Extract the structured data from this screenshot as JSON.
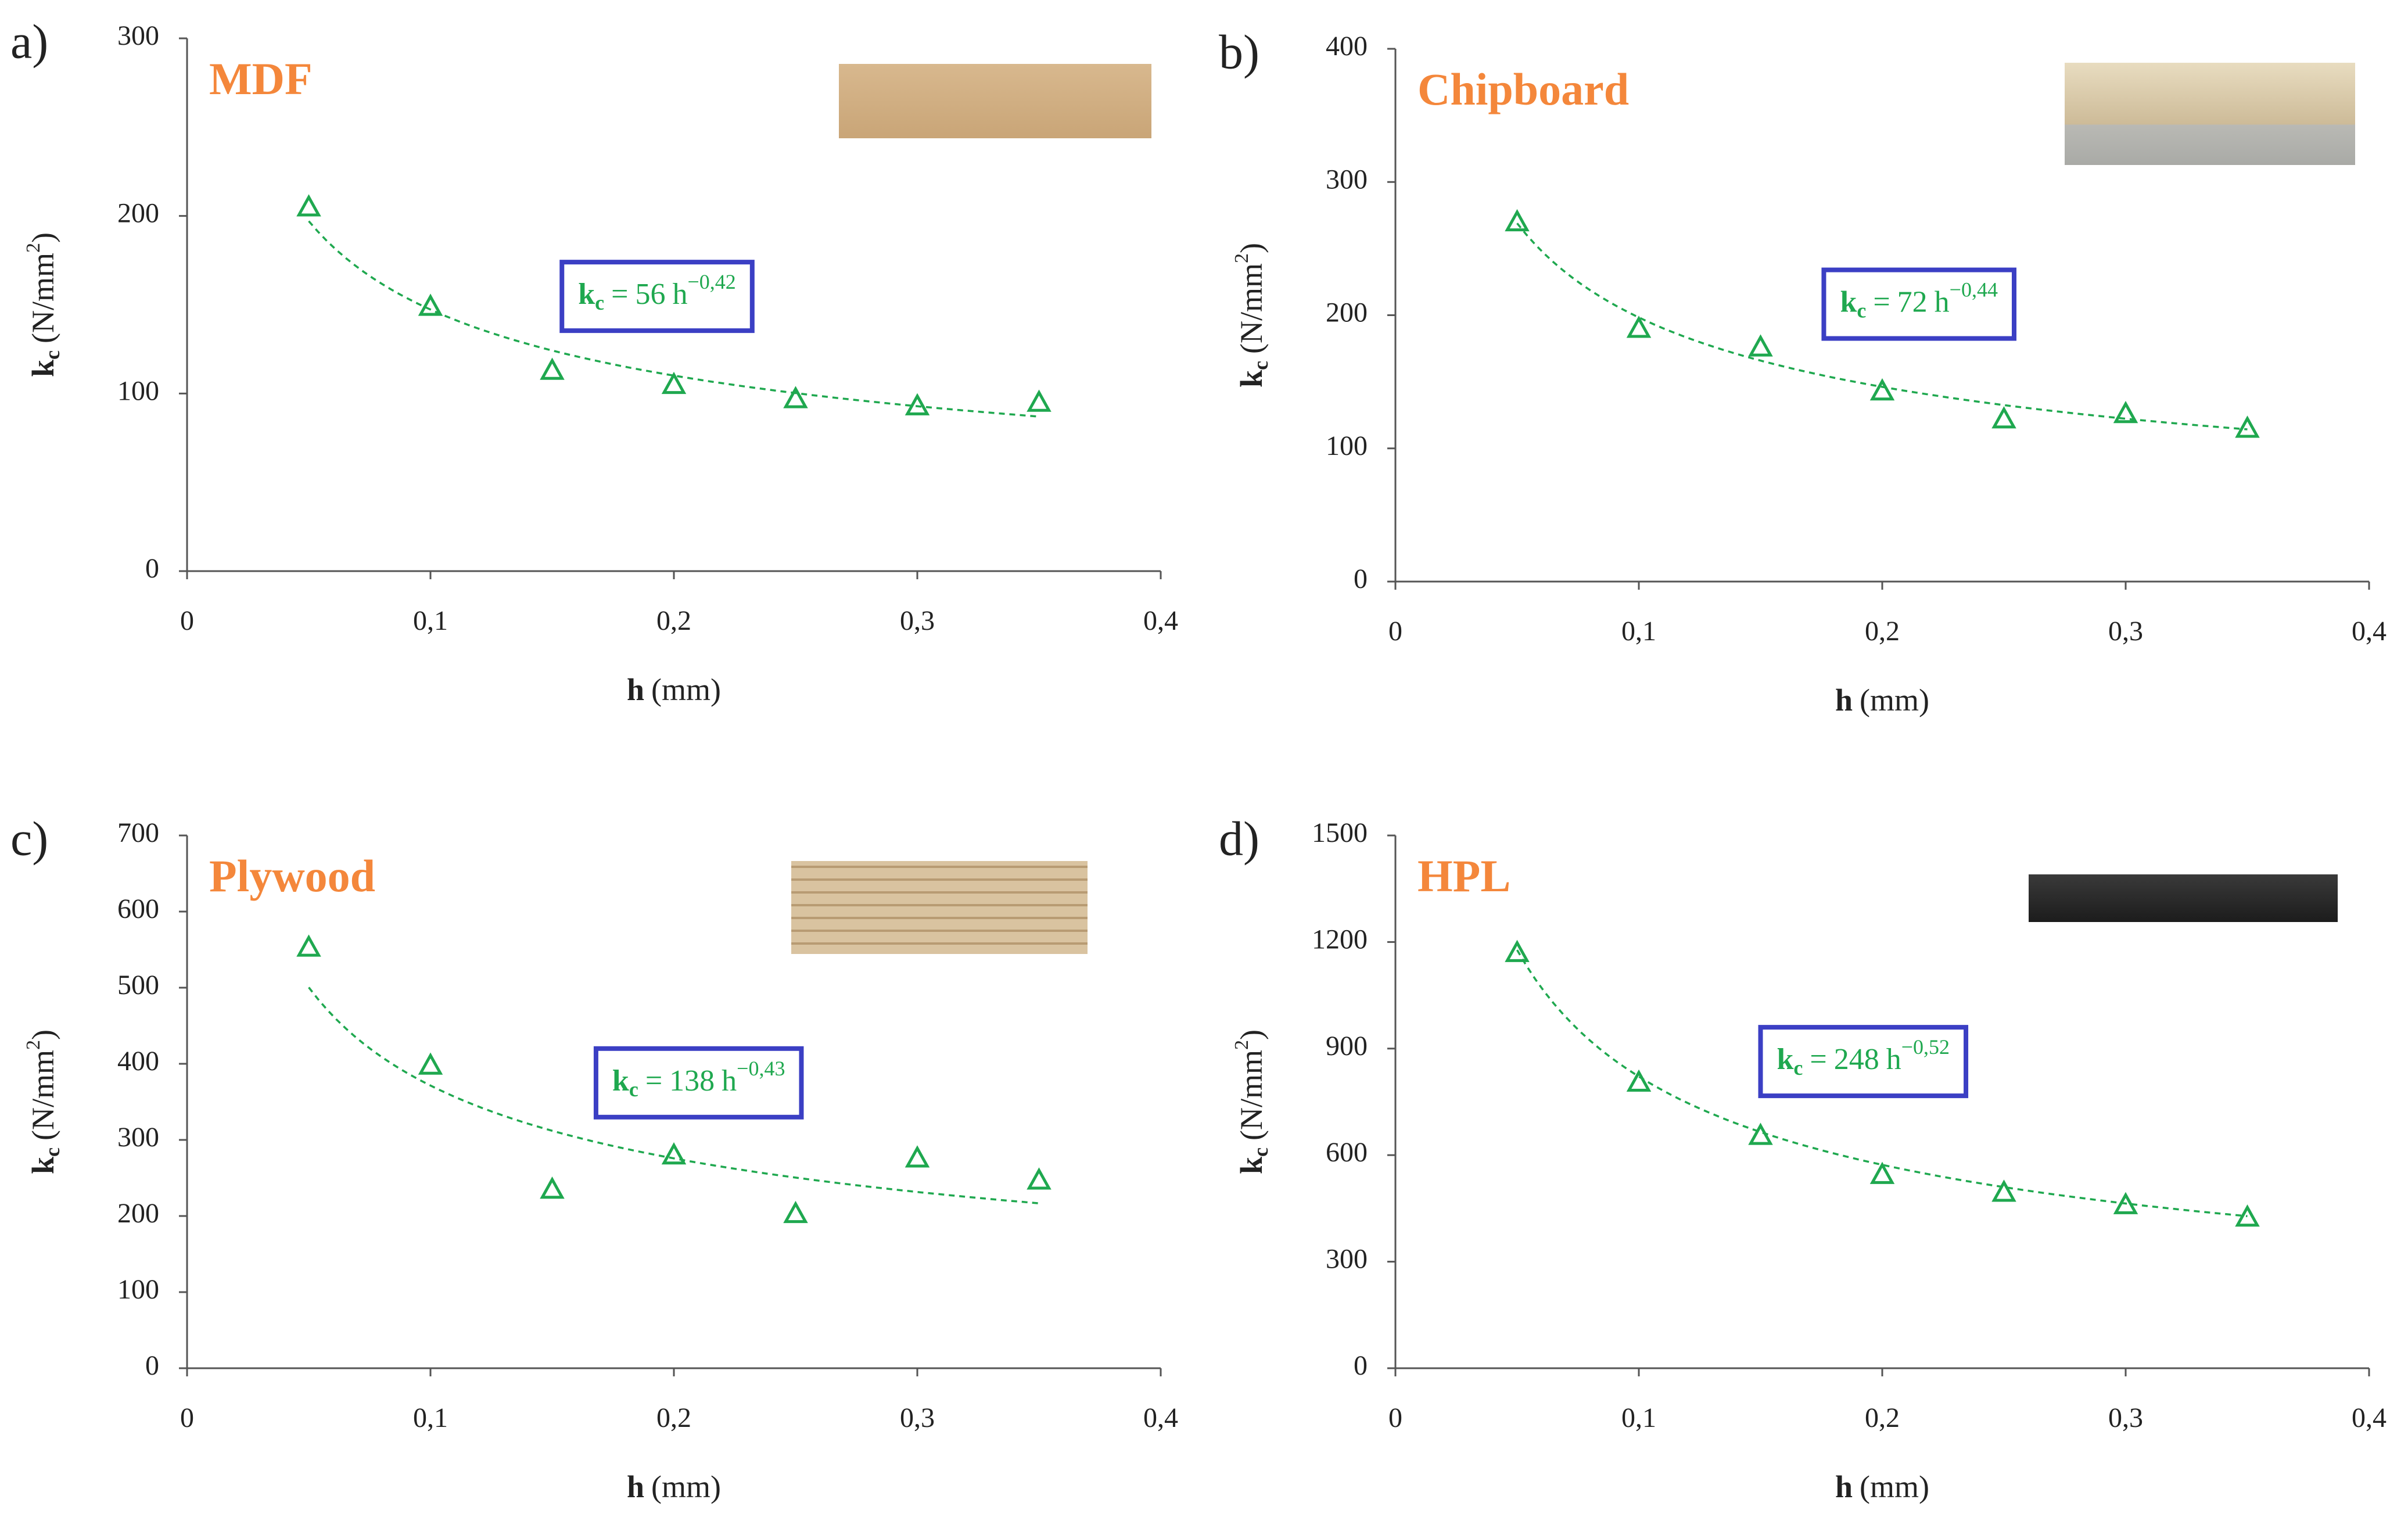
{
  "chart_data": [
    {
      "type": "scatter",
      "panel": "a)",
      "title": "MDF",
      "x": [
        0.05,
        0.1,
        0.15,
        0.2,
        0.25,
        0.3,
        0.35
      ],
      "values": [
        205,
        149,
        113,
        105,
        97,
        93,
        95
      ],
      "color": "#1fa84f",
      "xlim": [
        0,
        0.4
      ],
      "ylim": [
        0,
        300
      ],
      "xticks": [
        0,
        {
          "value": 0.1,
          "label": "0,1"
        },
        {
          "value": 0.2,
          "label": "0,2"
        },
        {
          "value": 0.3,
          "label": "0,3"
        },
        {
          "value": 0.4,
          "label": "0,4"
        }
      ],
      "yticks": [
        0,
        100,
        200,
        300
      ],
      "xlabel": {
        "symbol": "h",
        "unit": "(mm)"
      },
      "ylabel": {
        "symbol": "k",
        "subscript": "c",
        "unit": "(N/mm",
        "unit_sup": "2",
        "close": ")"
      },
      "fit": {
        "symbol": "k",
        "subscript": "c",
        "eq": "=",
        "coefficient": 56,
        "var": "h",
        "exponent": {
          "value": -0.42,
          "label": "−0,42"
        }
      }
    },
    {
      "type": "scatter",
      "panel": "b)",
      "title": "Chipboard",
      "x": [
        0.05,
        0.1,
        0.15,
        0.2,
        0.25,
        0.3,
        0.35
      ],
      "values": [
        270,
        190,
        176,
        143,
        122,
        126,
        115
      ],
      "color": "#1fa84f",
      "xlim": [
        0,
        0.4
      ],
      "ylim": [
        0,
        400
      ],
      "xticks": [
        0,
        {
          "value": 0.1,
          "label": "0,1"
        },
        {
          "value": 0.2,
          "label": "0,2"
        },
        {
          "value": 0.3,
          "label": "0,3"
        },
        {
          "value": 0.4,
          "label": "0,4"
        }
      ],
      "yticks": [
        0,
        100,
        200,
        300,
        400
      ],
      "xlabel": {
        "symbol": "h",
        "unit": "(mm)"
      },
      "ylabel": {
        "symbol": "k",
        "subscript": "c",
        "unit": "(N/mm",
        "unit_sup": "2",
        "close": ")"
      },
      "fit": {
        "symbol": "k",
        "subscript": "c",
        "eq": "=",
        "coefficient": 72,
        "var": "h",
        "exponent": {
          "value": -0.44,
          "label": "−0,44"
        }
      }
    },
    {
      "type": "scatter",
      "panel": "c)",
      "title": "Plywood",
      "x": [
        0.05,
        0.1,
        0.15,
        0.2,
        0.25,
        0.3,
        0.35
      ],
      "values": [
        553,
        398,
        235,
        280,
        203,
        276,
        247
      ],
      "color": "#1fa84f",
      "xlim": [
        0,
        0.4
      ],
      "ylim": [
        0,
        700
      ],
      "xticks": [
        0,
        {
          "value": 0.1,
          "label": "0,1"
        },
        {
          "value": 0.2,
          "label": "0,2"
        },
        {
          "value": 0.3,
          "label": "0,3"
        },
        {
          "value": 0.4,
          "label": "0,4"
        }
      ],
      "yticks": [
        0,
        100,
        200,
        300,
        400,
        500,
        600,
        700
      ],
      "xlabel": {
        "symbol": "h",
        "unit": "(mm)"
      },
      "ylabel": {
        "symbol": "k",
        "subscript": "c",
        "unit": "(N/mm",
        "unit_sup": "2",
        "close": ")"
      },
      "fit": {
        "symbol": "k",
        "subscript": "c",
        "eq": "=",
        "coefficient": 138,
        "var": "h",
        "exponent": {
          "value": -0.43,
          "label": "−0,43"
        }
      }
    },
    {
      "type": "scatter",
      "panel": "d)",
      "title": "HPL",
      "x": [
        0.05,
        0.1,
        0.15,
        0.2,
        0.25,
        0.3,
        0.35
      ],
      "values": [
        1170,
        805,
        655,
        545,
        495,
        460,
        425
      ],
      "color": "#1fa84f",
      "xlim": [
        0,
        0.4
      ],
      "ylim": [
        0,
        1500
      ],
      "xticks": [
        0,
        {
          "value": 0.1,
          "label": "0,1"
        },
        {
          "value": 0.2,
          "label": "0,2"
        },
        {
          "value": 0.3,
          "label": "0,3"
        },
        {
          "value": 0.4,
          "label": "0,4"
        }
      ],
      "yticks": [
        0,
        300,
        600,
        900,
        1200,
        1500
      ],
      "xlabel": {
        "symbol": "h",
        "unit": "(mm)"
      },
      "ylabel": {
        "symbol": "k",
        "subscript": "c",
        "unit": "(N/mm",
        "unit_sup": "2",
        "close": ")"
      },
      "fit": {
        "symbol": "k",
        "subscript": "c",
        "eq": "=",
        "coefficient": 248,
        "var": "h",
        "exponent": {
          "value": -0.52,
          "label": "−0,52"
        }
      }
    }
  ]
}
